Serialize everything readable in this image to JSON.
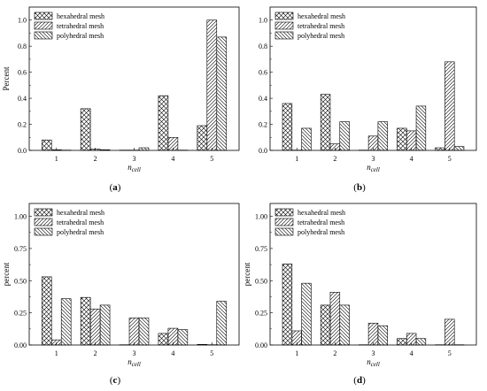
{
  "figure": {
    "legend_entries": [
      "hexahedral mesh",
      "tetrahedral mesh",
      "polyhedral mesh"
    ]
  },
  "chart_data": [
    {
      "type": "bar",
      "panel_label": "(a)",
      "categories": [
        "1",
        "2",
        "3",
        "4",
        "5"
      ],
      "series": [
        {
          "name": "hexahedral mesh",
          "values": [
            0.08,
            0.32,
            0.0,
            0.42,
            0.19
          ]
        },
        {
          "name": "tetrahedral mesh",
          "values": [
            0.005,
            0.01,
            0.0,
            0.1,
            1.0
          ]
        },
        {
          "name": "polyhedral mesh",
          "values": [
            0.0,
            0.005,
            0.02,
            0.0,
            0.87
          ]
        }
      ],
      "xlabel": "n_cell",
      "ylabel": "Percent",
      "ylim": [
        0,
        1.1
      ],
      "yticks": [
        "0.0",
        "0.2",
        "0.4",
        "0.6",
        "0.8",
        "1.0"
      ],
      "legend_position": "top-left",
      "grid": false
    },
    {
      "type": "bar",
      "panel_label": "(b)",
      "categories": [
        "1",
        "2",
        "3",
        "4",
        "5"
      ],
      "series": [
        {
          "name": "hexahedral mesh",
          "values": [
            0.36,
            0.43,
            0.0,
            0.17,
            0.02
          ]
        },
        {
          "name": "tetrahedral mesh",
          "values": [
            0.0,
            0.05,
            0.11,
            0.15,
            0.68
          ]
        },
        {
          "name": "polyhedral mesh",
          "values": [
            0.17,
            0.22,
            0.22,
            0.34,
            0.03
          ]
        }
      ],
      "xlabel": "n_cell",
      "ylabel": "",
      "ylim": [
        0,
        1.1
      ],
      "yticks": [
        "0.0",
        "0.2",
        "0.4",
        "0.6",
        "0.8",
        "1.0"
      ],
      "legend_position": "top-left",
      "grid": false
    },
    {
      "type": "bar",
      "panel_label": "(c)",
      "categories": [
        "1",
        "2",
        "3",
        "4",
        "5"
      ],
      "series": [
        {
          "name": "hexahedral mesh",
          "values": [
            0.53,
            0.37,
            0.0,
            0.09,
            0.005
          ]
        },
        {
          "name": "tetrahedral mesh",
          "values": [
            0.04,
            0.28,
            0.21,
            0.13,
            0.0
          ]
        },
        {
          "name": "polyhedral mesh",
          "values": [
            0.36,
            0.31,
            0.21,
            0.12,
            0.34
          ]
        }
      ],
      "xlabel": "n_cell",
      "ylabel": "percent",
      "ylim": [
        0,
        1.1
      ],
      "yticks": [
        "0.00",
        "0.25",
        "0.50",
        "0.75",
        "1.00"
      ],
      "legend_position": "top-left",
      "grid": false
    },
    {
      "type": "bar",
      "panel_label": "(d)",
      "categories": [
        "1",
        "2",
        "3",
        "4",
        "5"
      ],
      "series": [
        {
          "name": "hexahedral mesh",
          "values": [
            0.63,
            0.31,
            0.0,
            0.05,
            0.0
          ]
        },
        {
          "name": "tetrahedral mesh",
          "values": [
            0.11,
            0.41,
            0.17,
            0.09,
            0.2
          ]
        },
        {
          "name": "polyhedral mesh",
          "values": [
            0.48,
            0.31,
            0.15,
            0.05,
            0.0
          ]
        }
      ],
      "xlabel": "n_cell",
      "ylabel": "percent",
      "ylim": [
        0,
        1.1
      ],
      "yticks": [
        "0.00",
        "0.25",
        "0.50",
        "0.75",
        "1.00"
      ],
      "legend_position": "top-left",
      "grid": false
    }
  ]
}
